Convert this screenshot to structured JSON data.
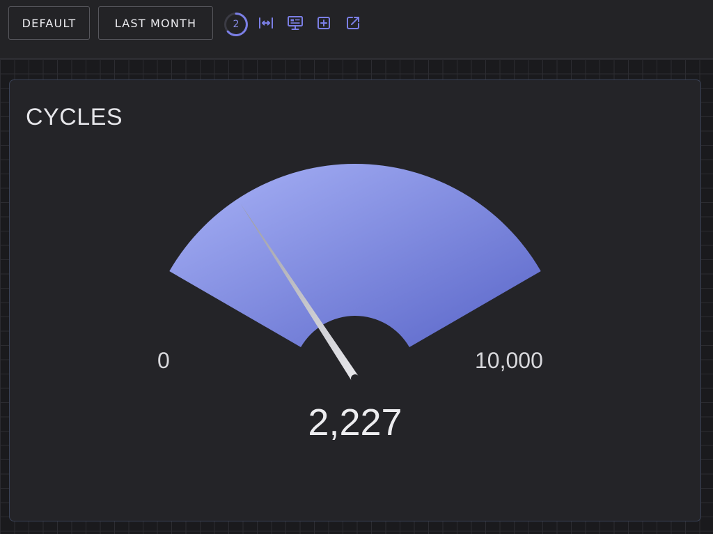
{
  "toolbar": {
    "default_label": "DEFAULT",
    "range_label": "LAST MONTH",
    "refresh_count": "2",
    "icons": [
      "fit-width-icon",
      "presentation-icon",
      "add-panel-icon",
      "open-external-icon"
    ],
    "accent": "#7b7fe6"
  },
  "panel": {
    "title": "CYCLES",
    "gauge": {
      "min_label": "0",
      "max_label": "10,000",
      "value_label": "2,227",
      "min": 0,
      "max": 10000,
      "value": 2227,
      "gradient_start": "#a9b3f7",
      "gradient_end": "#5965c8",
      "needle_color": "#d9d9dd"
    }
  }
}
